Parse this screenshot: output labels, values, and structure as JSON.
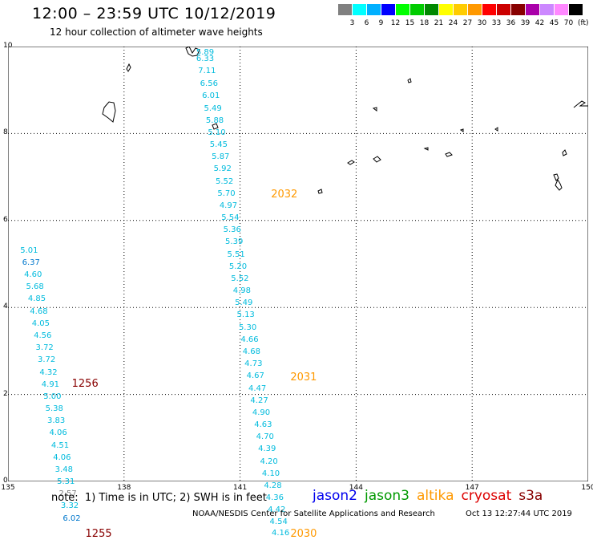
{
  "header": {
    "title": "12:00 – 23:59 UTC 10/12/2019",
    "subtitle": "12 hour collection of altimeter wave heights"
  },
  "colorbar": {
    "colors": [
      "#808080",
      "#00ffff",
      "#00b0ff",
      "#0000ff",
      "#00ff00",
      "#00cc00",
      "#008800",
      "#ffff00",
      "#ffcc00",
      "#ff9900",
      "#ff0000",
      "#cc0000",
      "#880000",
      "#aa00aa",
      "#cc88ff",
      "#ff88ff",
      "#000000"
    ],
    "labels": [
      "3",
      "6",
      "9",
      "12",
      "15",
      "18",
      "21",
      "24",
      "27",
      "30",
      "33",
      "36",
      "39",
      "42",
      "45",
      "70"
    ],
    "unit": "(ft)"
  },
  "map": {
    "x_ticks": [
      "135",
      "138",
      "141",
      "144",
      "147",
      "150"
    ],
    "y_ticks": [
      "0",
      "2",
      "4",
      "6",
      "8",
      "10"
    ],
    "x_range": [
      135,
      150
    ],
    "y_range": [
      0,
      10
    ]
  },
  "observations": [
    {
      "lon": 139.7,
      "lat": 9.85,
      "v": "5.89",
      "c": "#00bbdd"
    },
    {
      "lon": 139.7,
      "lat": 9.7,
      "v": "6.33",
      "c": "#00bbdd"
    },
    {
      "lon": 139.75,
      "lat": 9.42,
      "v": "7.11",
      "c": "#00bbdd"
    },
    {
      "lon": 139.8,
      "lat": 9.14,
      "v": "6.56",
      "c": "#00bbdd"
    },
    {
      "lon": 139.85,
      "lat": 8.85,
      "v": "6.01",
      "c": "#00bbdd"
    },
    {
      "lon": 139.9,
      "lat": 8.57,
      "v": "5.49",
      "c": "#00bbdd"
    },
    {
      "lon": 139.95,
      "lat": 8.29,
      "v": "5.88",
      "c": "#00bbdd"
    },
    {
      "lon": 140.0,
      "lat": 8.01,
      "v": "5.10",
      "c": "#00bbdd"
    },
    {
      "lon": 140.05,
      "lat": 7.73,
      "v": "5.45",
      "c": "#00bbdd"
    },
    {
      "lon": 140.1,
      "lat": 7.45,
      "v": "5.87",
      "c": "#00bbdd"
    },
    {
      "lon": 140.15,
      "lat": 7.17,
      "v": "5.92",
      "c": "#00bbdd"
    },
    {
      "lon": 140.2,
      "lat": 6.89,
      "v": "5.52",
      "c": "#00bbdd"
    },
    {
      "lon": 140.25,
      "lat": 6.61,
      "v": "5.70",
      "c": "#00bbdd"
    },
    {
      "lon": 140.3,
      "lat": 6.33,
      "v": "4.97",
      "c": "#00bbdd"
    },
    {
      "lon": 140.35,
      "lat": 6.05,
      "v": "5.54",
      "c": "#00bbdd"
    },
    {
      "lon": 140.4,
      "lat": 5.77,
      "v": "5.36",
      "c": "#00bbdd"
    },
    {
      "lon": 140.45,
      "lat": 5.49,
      "v": "5.39",
      "c": "#00bbdd"
    },
    {
      "lon": 140.5,
      "lat": 5.21,
      "v": "5.51",
      "c": "#00bbdd"
    },
    {
      "lon": 140.55,
      "lat": 4.93,
      "v": "5.20",
      "c": "#00bbdd"
    },
    {
      "lon": 140.6,
      "lat": 4.65,
      "v": "5.52",
      "c": "#00bbdd"
    },
    {
      "lon": 140.65,
      "lat": 4.37,
      "v": "4.98",
      "c": "#00bbdd"
    },
    {
      "lon": 140.7,
      "lat": 4.09,
      "v": "5.49",
      "c": "#00bbdd"
    },
    {
      "lon": 140.75,
      "lat": 3.81,
      "v": "5.13",
      "c": "#00bbdd"
    },
    {
      "lon": 140.8,
      "lat": 3.53,
      "v": "5.30",
      "c": "#00bbdd"
    },
    {
      "lon": 140.85,
      "lat": 3.25,
      "v": "4.66",
      "c": "#00bbdd"
    },
    {
      "lon": 140.9,
      "lat": 2.97,
      "v": "4.68",
      "c": "#00bbdd"
    },
    {
      "lon": 140.95,
      "lat": 2.69,
      "v": "4.73",
      "c": "#00bbdd"
    },
    {
      "lon": 141.0,
      "lat": 2.41,
      "v": "4.67",
      "c": "#00bbdd"
    },
    {
      "lon": 141.05,
      "lat": 2.13,
      "v": "4.47",
      "c": "#00bbdd"
    },
    {
      "lon": 141.1,
      "lat": 1.85,
      "v": "4.27",
      "c": "#00bbdd"
    },
    {
      "lon": 141.15,
      "lat": 1.57,
      "v": "4.90",
      "c": "#00bbdd"
    },
    {
      "lon": 141.2,
      "lat": 1.29,
      "v": "4.63",
      "c": "#00bbdd"
    },
    {
      "lon": 141.25,
      "lat": 1.01,
      "v": "4.70",
      "c": "#00bbdd"
    },
    {
      "lon": 141.3,
      "lat": 0.73,
      "v": "4.39",
      "c": "#00bbdd"
    },
    {
      "lon": 141.35,
      "lat": 0.45,
      "v": "4.20",
      "c": "#00bbdd"
    },
    {
      "lon": 141.4,
      "lat": 0.17,
      "v": "4.10",
      "c": "#00bbdd"
    },
    {
      "lon": 141.45,
      "lat": -0.11,
      "v": "4.28",
      "c": "#00bbdd"
    },
    {
      "lon": 141.5,
      "lat": -0.39,
      "v": "4.36",
      "c": "#00bbdd"
    },
    {
      "lon": 141.55,
      "lat": -0.67,
      "v": "4.42",
      "c": "#00bbdd"
    },
    {
      "lon": 141.6,
      "lat": -0.95,
      "v": "4.54",
      "c": "#00bbdd"
    },
    {
      "lon": 141.65,
      "lat": -1.2,
      "v": "4.16",
      "c": "#00bbdd"
    },
    {
      "lon": 135.15,
      "lat": 5.3,
      "v": "5.01",
      "c": "#00bbdd"
    },
    {
      "lon": 135.2,
      "lat": 5.02,
      "v": "6.37",
      "c": "#0077cc"
    },
    {
      "lon": 135.25,
      "lat": 4.74,
      "v": "4.60",
      "c": "#00bbdd"
    },
    {
      "lon": 135.3,
      "lat": 4.46,
      "v": "5.68",
      "c": "#00bbdd"
    },
    {
      "lon": 135.35,
      "lat": 4.18,
      "v": "4.85",
      "c": "#00bbdd"
    },
    {
      "lon": 135.4,
      "lat": 3.9,
      "v": "4.68",
      "c": "#00bbdd"
    },
    {
      "lon": 135.45,
      "lat": 3.62,
      "v": "4.05",
      "c": "#00bbdd"
    },
    {
      "lon": 135.5,
      "lat": 3.34,
      "v": "4.56",
      "c": "#00bbdd"
    },
    {
      "lon": 135.55,
      "lat": 3.06,
      "v": "3.72",
      "c": "#00bbdd"
    },
    {
      "lon": 135.6,
      "lat": 2.78,
      "v": "3.72",
      "c": "#00bbdd"
    },
    {
      "lon": 135.65,
      "lat": 2.5,
      "v": "4.32",
      "c": "#00bbdd"
    },
    {
      "lon": 135.7,
      "lat": 2.22,
      "v": "4.91",
      "c": "#00bbdd"
    },
    {
      "lon": 135.75,
      "lat": 1.94,
      "v": "5.00",
      "c": "#00bbdd"
    },
    {
      "lon": 135.8,
      "lat": 1.66,
      "v": "5.38",
      "c": "#00bbdd"
    },
    {
      "lon": 135.85,
      "lat": 1.38,
      "v": "3.83",
      "c": "#00bbdd"
    },
    {
      "lon": 135.9,
      "lat": 1.1,
      "v": "4.06",
      "c": "#00bbdd"
    },
    {
      "lon": 135.95,
      "lat": 0.82,
      "v": "4.51",
      "c": "#00bbdd"
    },
    {
      "lon": 136.0,
      "lat": 0.54,
      "v": "4.06",
      "c": "#00bbdd"
    },
    {
      "lon": 136.05,
      "lat": 0.26,
      "v": "3.48",
      "c": "#00bbdd"
    },
    {
      "lon": 136.1,
      "lat": -0.02,
      "v": "5.31",
      "c": "#00bbdd"
    },
    {
      "lon": 136.15,
      "lat": -0.3,
      "v": "2.57",
      "c": "#808080"
    },
    {
      "lon": 136.2,
      "lat": -0.58,
      "v": "3.32",
      "c": "#00bbdd"
    },
    {
      "lon": 136.25,
      "lat": -0.86,
      "v": "6.02",
      "c": "#0077cc"
    }
  ],
  "pass_labels": [
    {
      "text": "2032",
      "lon": 141.8,
      "lat": 6.6,
      "c": "#ff9900"
    },
    {
      "text": "2031",
      "lon": 142.3,
      "lat": 2.4,
      "c": "#ff9900"
    },
    {
      "text": "2030",
      "lon": 142.3,
      "lat": -1.2,
      "c": "#ff9900"
    },
    {
      "text": "1256",
      "lon": 136.65,
      "lat": 2.25,
      "c": "#880000"
    },
    {
      "text": "1255",
      "lon": 137.0,
      "lat": -1.2,
      "c": "#880000"
    }
  ],
  "footer": {
    "note": "note:  1) Time is in UTC; 2) SWH is in feet",
    "satellites": [
      {
        "name": "jason2",
        "color": "#0000ee"
      },
      {
        "name": "jason3",
        "color": "#009900"
      },
      {
        "name": "altika",
        "color": "#ff9900"
      },
      {
        "name": "cryosat",
        "color": "#dd0000"
      },
      {
        "name": "s3a",
        "color": "#880000"
      }
    ],
    "credit": "NOAA/NESDIS Center for Satellite Applications and Research",
    "generated": "Oct 13 12:27:44 UTC 2019"
  }
}
